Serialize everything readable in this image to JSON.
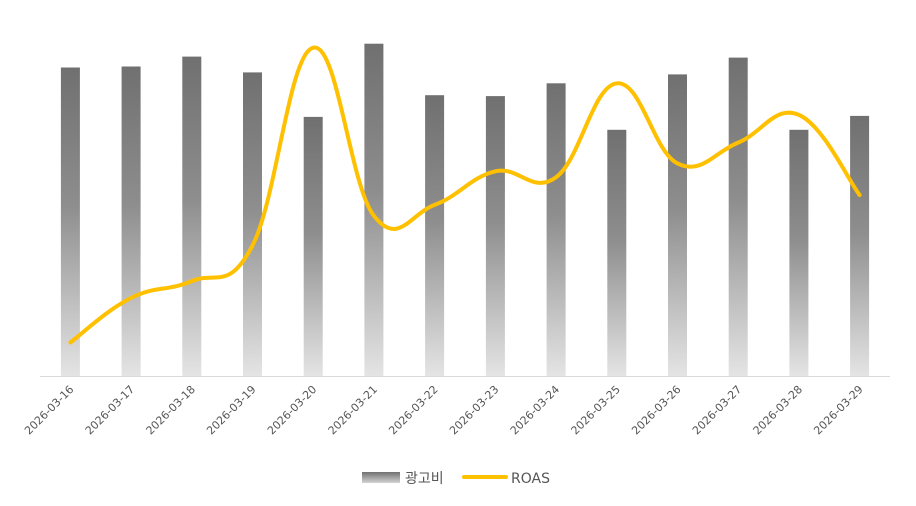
{
  "chart_data": {
    "type": "bar",
    "categories": [
      "2026-03-16",
      "2026-03-17",
      "2026-03-18",
      "2026-03-19",
      "2026-03-20",
      "2026-03-21",
      "2026-03-22",
      "2026-03-23",
      "2026-03-24",
      "2026-03-25",
      "2026-03-26",
      "2026-03-27",
      "2026-03-28",
      "2026-03-29"
    ],
    "series": [
      {
        "name": "광고비",
        "kind": "bar",
        "color": "#7a7a7a",
        "values": [
          312,
          313,
          323,
          307,
          262,
          336,
          284,
          283,
          296,
          249,
          305,
          322,
          249,
          263
        ]
      },
      {
        "name": "ROAS",
        "kind": "line",
        "smooth": true,
        "color": "#FFC000",
        "values": [
          34,
          79,
          96,
          132,
          332,
          162,
          173,
          207,
          201,
          296,
          215,
          236,
          264,
          183
        ]
      }
    ],
    "ylim": [
      0,
      360
    ],
    "y2lim": [
      0,
      360
    ],
    "grid": false,
    "legend": "bottom"
  }
}
